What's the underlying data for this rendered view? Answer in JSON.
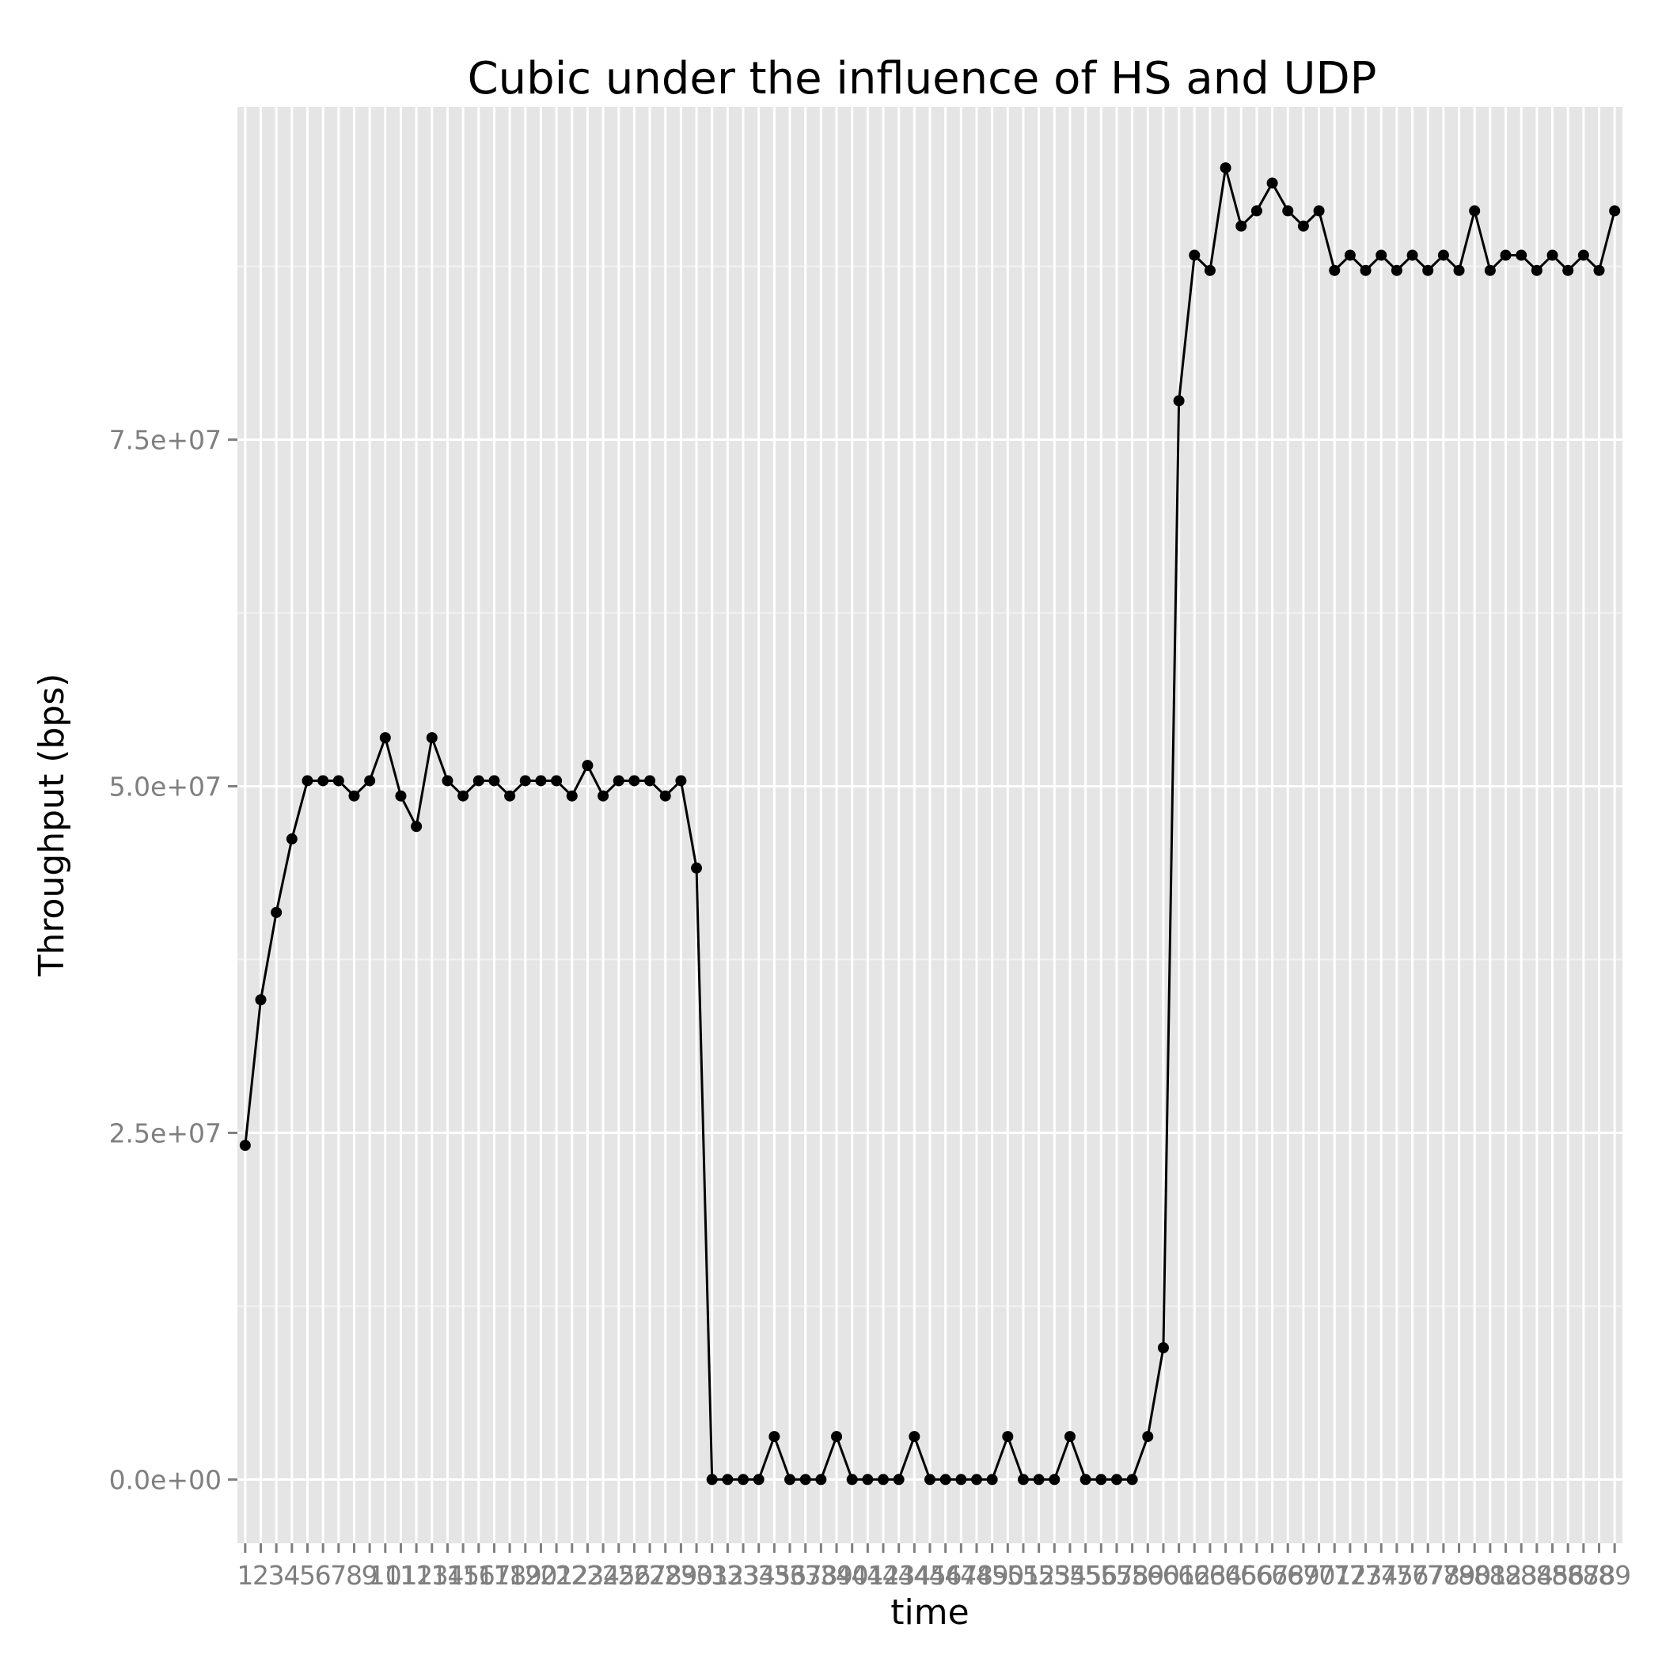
{
  "chart_data": {
    "type": "line",
    "title": "Cubic under the influence of HS and UDP",
    "xlabel": "time",
    "ylabel": "Throughput (bps)",
    "x": [
      1,
      2,
      3,
      4,
      5,
      6,
      7,
      8,
      9,
      10,
      11,
      12,
      13,
      14,
      15,
      16,
      17,
      18,
      19,
      20,
      21,
      22,
      23,
      24,
      25,
      26,
      27,
      28,
      29,
      30,
      31,
      32,
      33,
      34,
      35,
      36,
      37,
      38,
      39,
      40,
      41,
      42,
      43,
      44,
      45,
      46,
      47,
      48,
      49,
      50,
      51,
      52,
      53,
      54,
      55,
      56,
      57,
      58,
      59,
      60,
      61,
      62,
      63,
      64,
      65,
      66,
      67,
      68,
      69,
      70,
      71,
      72,
      73,
      74,
      75,
      76,
      77,
      78,
      79,
      80,
      81,
      82,
      83,
      84,
      85,
      86,
      87,
      88,
      89
    ],
    "x_tick_labels": [
      "1",
      "2",
      "3",
      "4",
      "5",
      "6",
      "7",
      "8",
      "9",
      "10",
      "11",
      "12",
      "13",
      "14",
      "15",
      "16",
      "17",
      "18",
      "19",
      "20",
      "21",
      "22",
      "23",
      "24",
      "25",
      "26",
      "27",
      "28",
      "29",
      "30",
      "31",
      "32",
      "33",
      "34",
      "35",
      "36",
      "37",
      "38",
      "39",
      "40",
      "41",
      "42",
      "43",
      "44",
      "45",
      "46",
      "47",
      "48",
      "49",
      "50",
      "51",
      "52",
      "53",
      "54",
      "55",
      "56",
      "57",
      "58",
      "59",
      "60",
      "61",
      "62",
      "63",
      "64",
      "65",
      "66",
      "67",
      "68",
      "69",
      "70",
      "71",
      "72",
      "73",
      "74",
      "75",
      "76",
      "77",
      "78",
      "79",
      "80",
      "81",
      "82",
      "83",
      "84",
      "85",
      "86",
      "87",
      "88",
      "89"
    ],
    "y": [
      24100000,
      34600000,
      40900000,
      46200000,
      50400000,
      50400000,
      50400000,
      49300000,
      50400000,
      53500000,
      49300000,
      47100000,
      53500000,
      50400000,
      49300000,
      50400000,
      50400000,
      49300000,
      50400000,
      50400000,
      50400000,
      49300000,
      51500000,
      49300000,
      50400000,
      50400000,
      50400000,
      49300000,
      50400000,
      44100000,
      0,
      0,
      0,
      0,
      3100000,
      0,
      0,
      0,
      3100000,
      0,
      0,
      0,
      0,
      3100000,
      0,
      0,
      0,
      0,
      0,
      3100000,
      0,
      0,
      0,
      3100000,
      0,
      0,
      0,
      0,
      3100000,
      9500000,
      77800000,
      88300000,
      87200000,
      94600000,
      90400000,
      91500000,
      93500000,
      91500000,
      90400000,
      91500000,
      87200000,
      88300000,
      87200000,
      88300000,
      87200000,
      88300000,
      87200000,
      88300000,
      87200000,
      91500000,
      87200000,
      88300000,
      88300000,
      87200000,
      88300000,
      87200000,
      88300000,
      87200000,
      91500000
    ],
    "y_ticks": [
      0,
      25000000,
      50000000,
      75000000
    ],
    "y_tick_labels": [
      "0.0e+00",
      "2.5e+07",
      "5.0e+07",
      "7.5e+07"
    ],
    "ylim": [
      -4600000,
      99000000
    ],
    "xlim": [
      0.5,
      89.5
    ],
    "grid": true,
    "legend": "none",
    "colors": {
      "panel": "#e5e5e5",
      "grid_major": "#ffffff",
      "grid_minor": "#f2f2f2",
      "line": "#000000",
      "tick_text": "#7f7f7f"
    }
  }
}
